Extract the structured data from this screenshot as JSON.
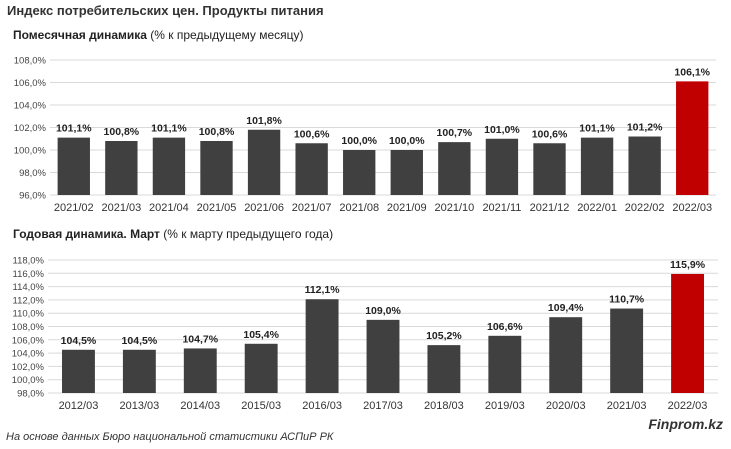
{
  "title": "Индекс потребительских цен. Продукты питания",
  "footer": "На основе данных Бюро национальной статистики АСПиР РК",
  "brand": "Finprom.kz",
  "colors": {
    "bar": "#404040",
    "highlight": "#C00000",
    "grid": "#d9d9d9"
  },
  "chart_data": [
    {
      "type": "bar",
      "title_bold": "Помесячная динамика",
      "title_rest": " (% к предыдущему месяцу)",
      "categories": [
        "2021/02",
        "2021/03",
        "2021/04",
        "2021/05",
        "2021/06",
        "2021/07",
        "2021/08",
        "2021/09",
        "2021/10",
        "2021/11",
        "2021/12",
        "2022/01",
        "2022/02",
        "2022/03"
      ],
      "values": [
        101.1,
        100.8,
        101.1,
        100.8,
        101.8,
        100.6,
        100.0,
        100.0,
        100.7,
        101.0,
        100.6,
        101.1,
        101.2,
        106.1
      ],
      "labels": [
        "101,1%",
        "100,8%",
        "101,1%",
        "100,8%",
        "101,8%",
        "100,6%",
        "100,0%",
        "100,0%",
        "100,7%",
        "101,0%",
        "100,6%",
        "101,1%",
        "101,2%",
        "106,1%"
      ],
      "highlight_index": 13,
      "ylim": [
        96,
        108
      ],
      "yticks": [
        96,
        98,
        100,
        102,
        104,
        106,
        108
      ],
      "ytick_labels": [
        "96,0%",
        "98,0%",
        "100,0%",
        "102,0%",
        "104,0%",
        "106,0%",
        "108,0%"
      ],
      "grid": true
    },
    {
      "type": "bar",
      "title_bold": "Годовая динамика. Март",
      "title_rest": " (% к марту предыдущего года)",
      "categories": [
        "2012/03",
        "2013/03",
        "2014/03",
        "2015/03",
        "2016/03",
        "2017/03",
        "2018/03",
        "2019/03",
        "2020/03",
        "2021/03",
        "2022/03"
      ],
      "values": [
        104.5,
        104.5,
        104.7,
        105.4,
        112.1,
        109.0,
        105.2,
        106.6,
        109.4,
        110.7,
        115.9
      ],
      "labels": [
        "104,5%",
        "104,5%",
        "104,7%",
        "105,4%",
        "112,1%",
        "109,0%",
        "105,2%",
        "106,6%",
        "109,4%",
        "110,7%",
        "115,9%"
      ],
      "highlight_index": 10,
      "ylim": [
        98,
        118
      ],
      "yticks": [
        98,
        100,
        102,
        104,
        106,
        108,
        110,
        112,
        114,
        116,
        118
      ],
      "ytick_labels": [
        "98,0%",
        "100,0%",
        "102,0%",
        "104,0%",
        "106,0%",
        "108,0%",
        "110,0%",
        "112,0%",
        "114,0%",
        "116,0%",
        "118,0%"
      ],
      "grid": true
    }
  ]
}
